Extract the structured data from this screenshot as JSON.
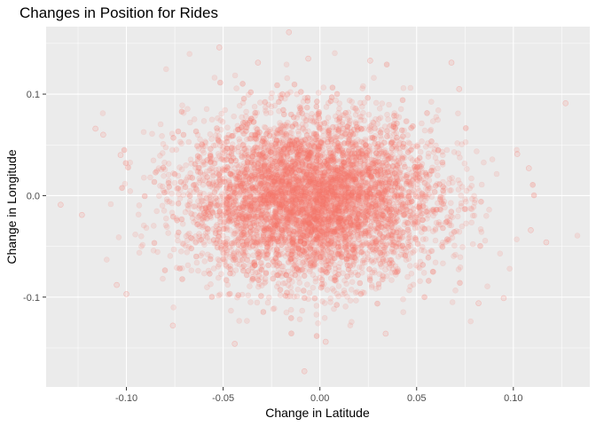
{
  "chart_data": {
    "type": "scatter",
    "title": "Changes in Position for Rides",
    "xlabel": "Change in Latitude",
    "ylabel": "Change in Longitude",
    "xlim": [
      -0.1415,
      0.1395
    ],
    "ylim": [
      -0.1885,
      0.1665
    ],
    "x_ticks": [
      -0.1,
      -0.05,
      0.0,
      0.05,
      0.1
    ],
    "x_tick_labels": [
      "-0.10",
      "-0.05",
      "0.00",
      "0.05",
      "0.10"
    ],
    "y_ticks": [
      -0.1,
      0.0,
      0.1
    ],
    "y_tick_labels": [
      "-0.1",
      "0.0",
      "0.1"
    ],
    "grid": true,
    "legend": "none",
    "series": [
      {
        "color": "#f8766d",
        "point_alpha": 0.15,
        "distribution": {
          "x_mean": -0.004,
          "y_mean": -0.003,
          "x_sd": 0.032,
          "y_sd": 0.04,
          "approx_points": 7000
        },
        "outlier_points": [
          {
            "x": -0.134,
            "y": -0.009
          },
          {
            "x": -0.123,
            "y": -0.019
          },
          {
            "x": -0.116,
            "y": 0.066
          },
          {
            "x": -0.112,
            "y": 0.06
          },
          {
            "x": -0.103,
            "y": 0.04
          },
          {
            "x": -0.105,
            "y": -0.088
          },
          {
            "x": -0.1,
            "y": -0.097
          },
          {
            "x": -0.076,
            "y": -0.128
          },
          {
            "x": -0.052,
            "y": 0.146
          },
          {
            "x": -0.044,
            "y": -0.146
          },
          {
            "x": -0.032,
            "y": 0.131
          },
          {
            "x": -0.016,
            "y": 0.161
          },
          {
            "x": -0.008,
            "y": -0.173
          },
          {
            "x": -0.006,
            "y": 0.135
          },
          {
            "x": 0.003,
            "y": -0.144
          },
          {
            "x": 0.026,
            "y": 0.133
          },
          {
            "x": 0.034,
            "y": -0.136
          },
          {
            "x": 0.068,
            "y": 0.131
          },
          {
            "x": 0.072,
            "y": 0.105
          },
          {
            "x": 0.082,
            "y": -0.106
          },
          {
            "x": 0.095,
            "y": -0.101
          },
          {
            "x": 0.102,
            "y": 0.041
          },
          {
            "x": 0.108,
            "y": 0.027
          },
          {
            "x": 0.109,
            "y": -0.034
          },
          {
            "x": 0.117,
            "y": -0.046
          },
          {
            "x": 0.127,
            "y": 0.091
          }
        ]
      }
    ]
  }
}
